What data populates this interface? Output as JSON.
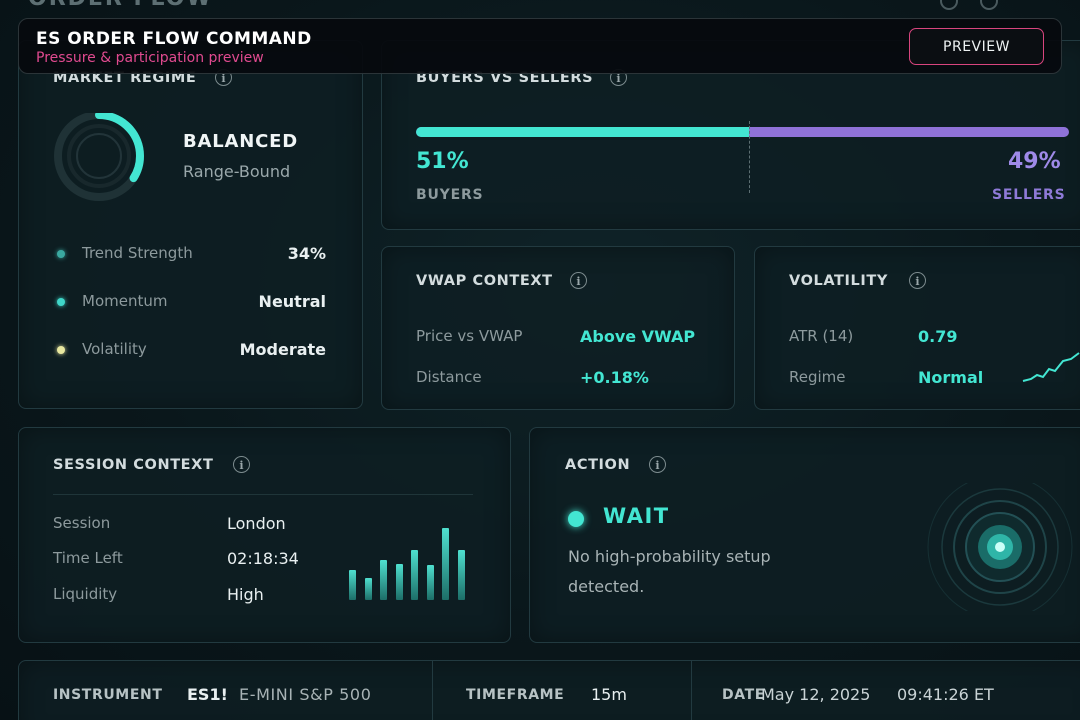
{
  "header": {
    "title": "ES ORDER FLOW COMMAND",
    "subtitle": "Pressure & participation preview",
    "preview_button": "PREVIEW"
  },
  "background_title": "ORDER FLOW",
  "market_regime": {
    "title": "MARKET REGIME",
    "state": "BALANCED",
    "substate": "Range-Bound",
    "gauge_fraction": 0.34,
    "rows": [
      {
        "label": "Trend Strength",
        "value": "34%",
        "dot_color": "#3aa8a0"
      },
      {
        "label": "Momentum",
        "value": "Neutral",
        "dot_color": "#3fd6c8"
      },
      {
        "label": "Volatility",
        "value": "Moderate",
        "dot_color": "#e8e8a0"
      }
    ]
  },
  "buyers_sellers": {
    "title": "BUYERS VS SELLERS",
    "buyers_pct": "51%",
    "sellers_pct": "49%",
    "buyers_label": "BUYERS",
    "sellers_label": "SELLERS",
    "buyers_fraction": 0.51
  },
  "vwap": {
    "title": "VWAP CONTEXT",
    "rows": [
      {
        "label": "Price vs VWAP",
        "value": "Above VWAP"
      },
      {
        "label": "Distance",
        "value": "+0.18%"
      }
    ]
  },
  "volatility": {
    "title": "VOLATILITY",
    "rows": [
      {
        "label": "ATR (14)",
        "value": "0.79"
      },
      {
        "label": "Regime",
        "value": "Normal"
      }
    ]
  },
  "session": {
    "title": "SESSION CONTEXT",
    "rows": [
      {
        "label": "Session",
        "value": "London"
      },
      {
        "label": "Time Left",
        "value": "02:18:34"
      },
      {
        "label": "Liquidity",
        "value": "High"
      }
    ],
    "bars": [
      0.42,
      0.3,
      0.55,
      0.5,
      0.7,
      0.48,
      1.0,
      0.7
    ]
  },
  "action": {
    "title": "ACTION",
    "signal": "WAIT",
    "message_line1": "No high-probability setup",
    "message_line2": "detected."
  },
  "footer": {
    "instrument_label": "INSTRUMENT",
    "symbol": "ES1!",
    "instrument_name": "E-MINI S&P 500",
    "timeframe_label": "TIMEFRAME",
    "timeframe": "15m",
    "date_label": "DATE",
    "date": "May 12, 2025",
    "time": "09:41:26 ET"
  },
  "colors": {
    "accent_teal": "#43e6d2",
    "accent_purple": "#8f72d8",
    "header_accent": "#e04a8f"
  },
  "icons": [
    "info-icon",
    "radar-icon",
    "gauge-ring",
    "status-dot"
  ]
}
